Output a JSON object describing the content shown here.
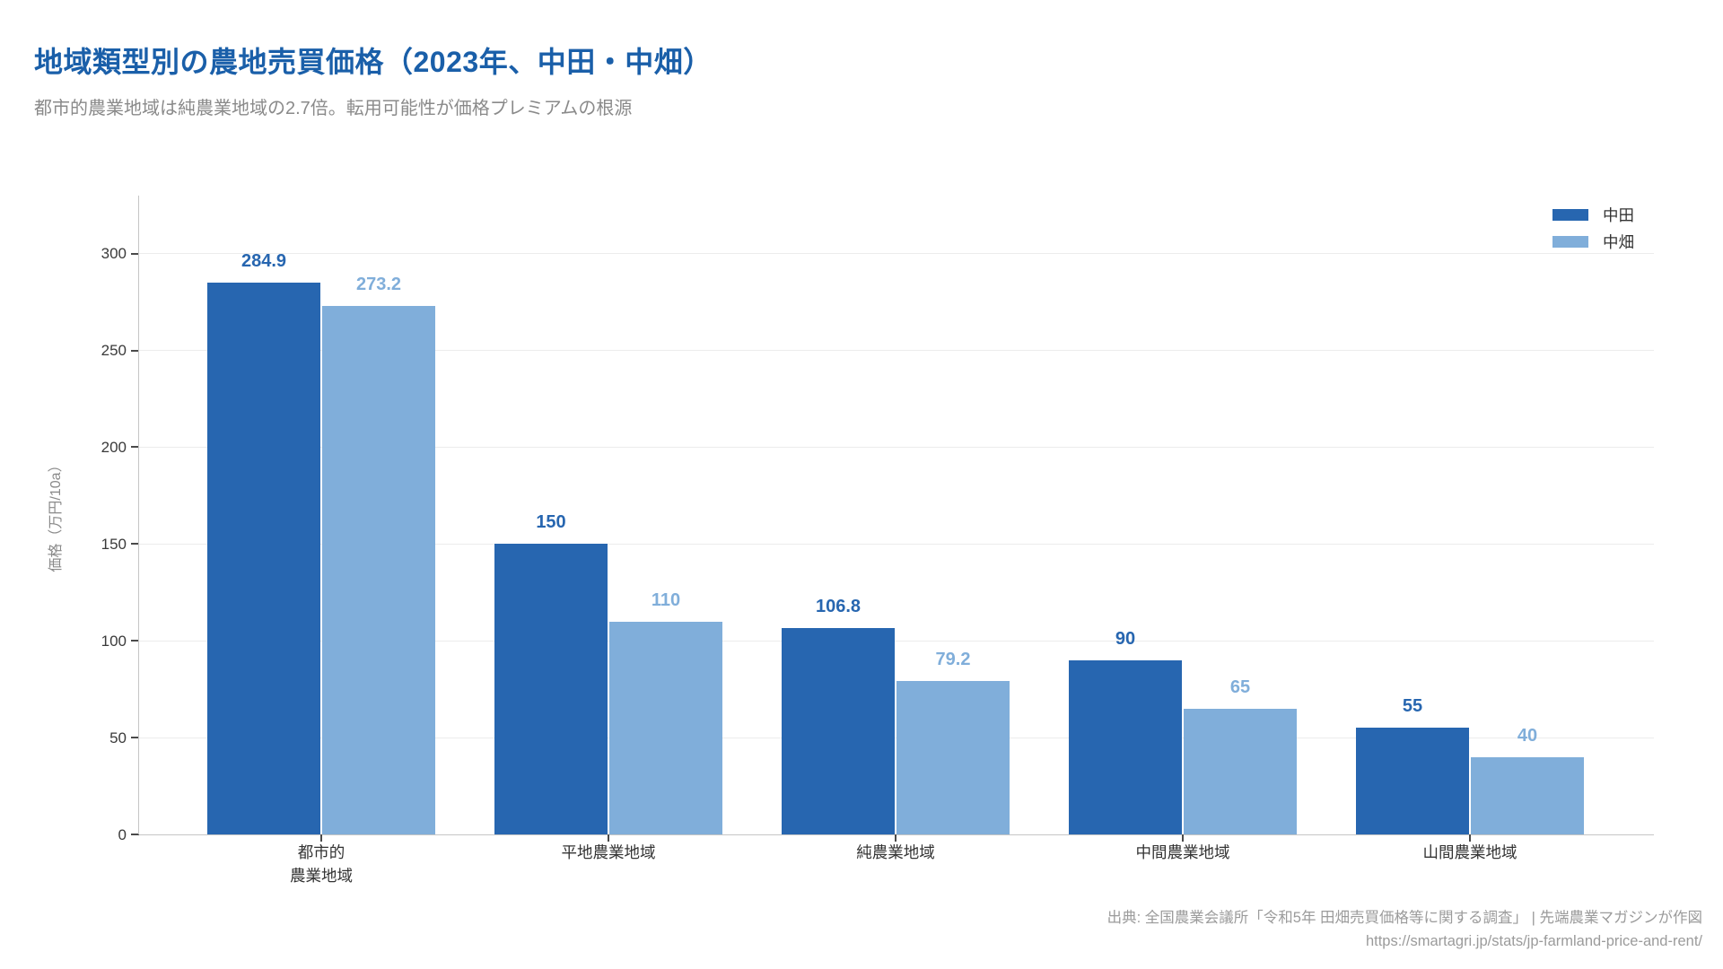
{
  "header": {
    "title": "地域類型別の農地売買価格（2023年、中田・中畑）",
    "subtitle": "都市的農業地域は純農業地域の2.7倍。転用可能性が価格プレミアムの根源"
  },
  "chart_data": {
    "type": "bar",
    "categories": [
      "都市的\n農業地域",
      "平地農業地域",
      "純農業地域",
      "中間農業地域",
      "山間農業地域"
    ],
    "series": [
      {
        "name": "中田",
        "color": "#2766b0",
        "values": [
          284.9,
          150,
          106.8,
          90,
          55
        ]
      },
      {
        "name": "中畑",
        "color": "#80aeda",
        "values": [
          273.2,
          110,
          79.2,
          65,
          40
        ]
      }
    ],
    "title": "地域類型別の農地売買価格（2023年、中田・中畑）",
    "xlabel": "",
    "ylabel": "価格（万円/10a）",
    "yticks": [
      0,
      50,
      100,
      150,
      200,
      250,
      300
    ],
    "ylim": [
      0,
      330
    ],
    "grid": true,
    "legend_position": "top-right"
  },
  "colors": {
    "title": "#1a5fa9",
    "subtitle": "#8a8a8a",
    "series_dark": "#2766b0",
    "series_light": "#80aeda",
    "gridline": "#ececec",
    "axis": "#c6c6c6",
    "tick_text": "#3a3a3a",
    "footer_text": "#9b9b9b"
  },
  "footer": {
    "source": "出典: 全国農業会議所「令和5年 田畑売買価格等に関する調査」 | 先端農業マガジンが作図",
    "url": "https://smartagri.jp/stats/jp-farmland-price-and-rent/"
  }
}
